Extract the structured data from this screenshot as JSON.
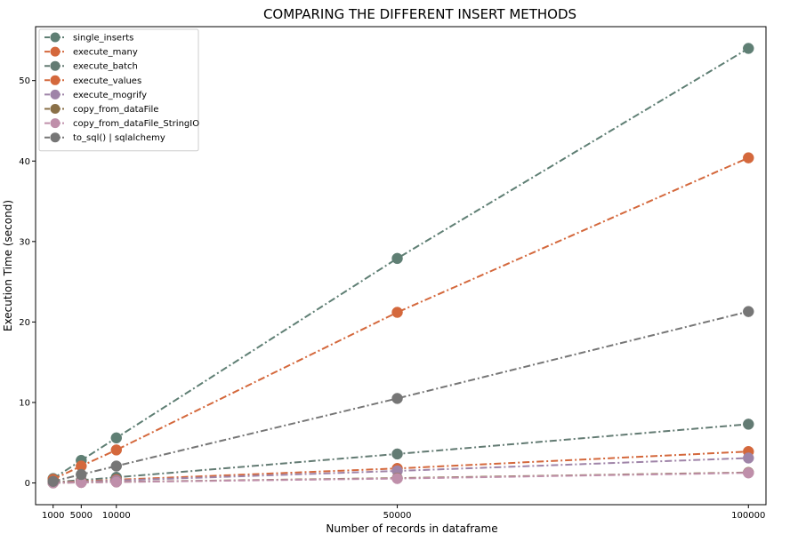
{
  "chart_data": {
    "type": "line",
    "title": "COMPARING THE DIFFERENT INSERT METHODS",
    "xlabel": "Number of records in dataframe",
    "ylabel": "Execution Time (second)",
    "x": [
      1000,
      5000,
      10000,
      50000,
      100000
    ],
    "x_tick_labels": [
      "1000",
      "5000",
      "10000",
      "50000",
      "100000"
    ],
    "xlim": [
      -1500,
      102500
    ],
    "ylim": [
      -2.7,
      56.7
    ],
    "y_ticks": [
      0,
      10,
      20,
      30,
      40,
      50
    ],
    "y_tick_labels": [
      "0",
      "10",
      "20",
      "30",
      "40",
      "50"
    ],
    "grid": false,
    "legend_position": "upper left",
    "series": [
      {
        "name": "single_inserts",
        "color": "#5f7f74",
        "values": [
          0.55,
          2.8,
          5.6,
          27.9,
          54.0
        ]
      },
      {
        "name": "execute_many",
        "color": "#d4683c",
        "values": [
          0.45,
          2.1,
          4.1,
          21.2,
          40.4
        ]
      },
      {
        "name": "execute_batch",
        "color": "#637b73",
        "values": [
          0.1,
          0.35,
          0.7,
          3.6,
          7.3
        ]
      },
      {
        "name": "execute_values",
        "color": "#d4683c",
        "values": [
          0.05,
          0.2,
          0.4,
          1.8,
          3.9
        ]
      },
      {
        "name": "execute_mogrify",
        "color": "#9f84a8",
        "values": [
          0.03,
          0.15,
          0.3,
          1.5,
          3.1
        ]
      },
      {
        "name": "copy_from_dataFile",
        "color": "#8a7048",
        "values": [
          0.01,
          0.07,
          0.13,
          0.6,
          1.3
        ]
      },
      {
        "name": "copy_from_dataFile_StringIO",
        "color": "#bf8faa",
        "values": [
          0.01,
          0.06,
          0.12,
          0.55,
          1.25
        ]
      },
      {
        "name": "to_sql() | sqlalchemy",
        "color": "#767676",
        "values": [
          0.2,
          1.05,
          2.1,
          10.5,
          21.3
        ]
      }
    ]
  }
}
